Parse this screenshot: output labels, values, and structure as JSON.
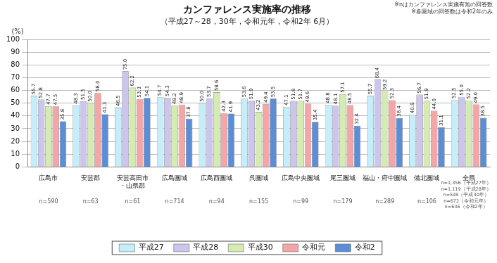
{
  "chart_data": {
    "type": "bar",
    "title": "カンファレンス実施率の推移",
    "subtitle": "（平成27～28，30年，令和元年，令和2年 6月）",
    "y_label": "(%)",
    "notes": [
      "※nはカンファレンス実施有無の回答数",
      "※各圏域の回答数は令和2年のみ"
    ],
    "categories": [
      "広島市",
      "安芸郡",
      "安芸高田市・山県郡",
      "広島圏域",
      "広島西圏域",
      "呉圏域",
      "広島中央圏域",
      "尾三圏域",
      "福山・府中圏域",
      "備北圏域",
      "全県"
    ],
    "n_labels": [
      [
        "n=590"
      ],
      [
        "n=63"
      ],
      [
        "n=61"
      ],
      [
        "n=714"
      ],
      [
        "n=94"
      ],
      [
        "n=155"
      ],
      [
        "n=99"
      ],
      [
        "n=179"
      ],
      [
        "n=289"
      ],
      [
        "n=106"
      ],
      [
        "n=1,356（平成27年）",
        "n=1,119（平成28年）",
        "n=549（平成30年）",
        "n=672（令和元年）",
        "n=636（令和2年）"
      ]
    ],
    "series": [
      {
        "name": "平成27",
        "color": "#c5eefa",
        "values": [
          55.7,
          48.3,
          46.5,
          54.7,
          50.0,
          53.6,
          47.1,
          48.8,
          55.7,
          40.9,
          52.5
        ],
        "value_labels": [
          "55.7",
          "48.3",
          "46.5",
          "54.7",
          "50.0",
          "53.6",
          "47.1",
          "48.8",
          "55.7",
          "40.9",
          "52.5"
        ]
      },
      {
        "name": "平成28",
        "color": "#ccc6ee",
        "values": [
          52.8,
          51.5,
          75.0,
          54.3,
          53.7,
          51.9,
          51.8,
          48.1,
          68.4,
          56.7,
          55.0
        ],
        "value_labels": [
          "52.8",
          "51.5",
          "75.0",
          "54.3",
          "53.7",
          "51.9",
          "51.8",
          "48.1",
          "68.4",
          "56.7",
          "55.0"
        ]
      },
      {
        "name": "平成30",
        "color": "#d6ebb3",
        "values": [
          47.7,
          50.0,
          62.2,
          48.2,
          58.6,
          43.2,
          51.7,
          57.1,
          59.2,
          51.9,
          52.2
        ],
        "value_labels": [
          "47.7",
          "50.0",
          "62.2",
          "48.2",
          "58.6",
          "43.2",
          "51.7",
          "57.1",
          "59.2",
          "51.9",
          "52.2"
        ]
      },
      {
        "name": "令和元",
        "color": "#f4a6a6",
        "values": [
          47.5,
          58.0,
          53.3,
          48.9,
          42.3,
          49.4,
          49.6,
          48.5,
          52.3,
          44.0,
          49.0
        ],
        "value_labels": [
          "47.5",
          "58.0",
          "53.3",
          "48.9",
          "42.3",
          "49.4",
          "49.6",
          "48.5",
          "52.3",
          "44.0",
          "49.0"
        ]
      },
      {
        "name": "令和2",
        "color": "#5b8ed6",
        "values": [
          35.8,
          41.3,
          54.1,
          37.8,
          41.9,
          53.5,
          35.4,
          32.4,
          38.4,
          31.1,
          38.5
        ],
        "value_labels": [
          "35.8",
          "41.3",
          "54.1",
          "37.8",
          "41.9",
          "53.5",
          "35.4",
          "32.4",
          "38.4",
          "31.1",
          "38.5"
        ]
      }
    ],
    "ylim": [
      0,
      100
    ],
    "yticks": [
      0,
      10,
      20,
      30,
      40,
      50,
      60,
      70,
      80,
      90,
      100
    ],
    "grid": true,
    "legend": "bottom",
    "data_labels": true
  }
}
